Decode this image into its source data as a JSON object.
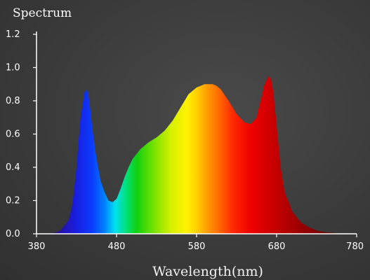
{
  "chart_data": {
    "type": "area",
    "title": "Spectrum",
    "xlabel": "Wavelength(nm)",
    "ylabel": "",
    "xlim": [
      380,
      780
    ],
    "ylim": [
      0,
      1.2
    ],
    "x_ticks": [
      "380",
      "480",
      "580",
      "680",
      "780"
    ],
    "y_ticks": [
      "0.0",
      "0.2",
      "0.4",
      "0.6",
      "0.8",
      "1.0",
      "1.2"
    ],
    "grid": false,
    "fill": "wavelength-colored spectrum gradient",
    "series": [
      {
        "x": [
          400,
          410,
          420,
          425,
          430,
          435,
          440,
          443,
          446,
          450,
          455,
          460,
          465,
          470,
          475,
          480,
          485,
          490,
          495,
          500,
          505,
          510,
          520,
          530,
          540,
          550,
          560,
          570,
          580,
          590,
          600,
          605,
          610,
          620,
          630,
          640,
          648,
          655,
          660,
          665,
          670,
          673,
          676,
          680,
          685,
          690,
          700,
          710,
          720,
          730,
          740,
          750,
          760
        ],
        "y": [
          0.0,
          0.02,
          0.08,
          0.18,
          0.4,
          0.7,
          0.85,
          0.87,
          0.8,
          0.62,
          0.45,
          0.32,
          0.25,
          0.2,
          0.19,
          0.21,
          0.27,
          0.34,
          0.4,
          0.45,
          0.48,
          0.51,
          0.55,
          0.58,
          0.62,
          0.68,
          0.76,
          0.84,
          0.88,
          0.9,
          0.9,
          0.89,
          0.87,
          0.8,
          0.72,
          0.67,
          0.66,
          0.7,
          0.8,
          0.9,
          0.95,
          0.93,
          0.85,
          0.65,
          0.4,
          0.25,
          0.13,
          0.07,
          0.04,
          0.02,
          0.01,
          0.005,
          0.0
        ]
      }
    ]
  }
}
